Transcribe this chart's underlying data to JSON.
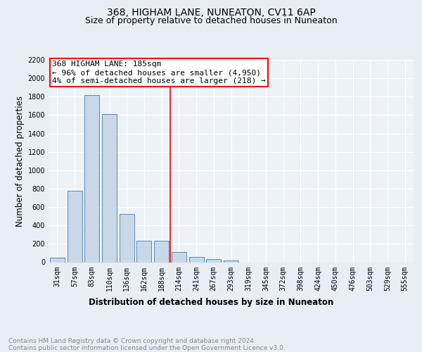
{
  "title1": "368, HIGHAM LANE, NUNEATON, CV11 6AP",
  "title2": "Size of property relative to detached houses in Nuneaton",
  "xlabel": "Distribution of detached houses by size in Nuneaton",
  "ylabel": "Number of detached properties",
  "footnote": "Contains HM Land Registry data © Crown copyright and database right 2024.\nContains public sector information licensed under the Open Government Licence v3.0.",
  "categories": [
    "31sqm",
    "57sqm",
    "83sqm",
    "110sqm",
    "136sqm",
    "162sqm",
    "188sqm",
    "214sqm",
    "241sqm",
    "267sqm",
    "293sqm",
    "319sqm",
    "345sqm",
    "372sqm",
    "398sqm",
    "424sqm",
    "450sqm",
    "476sqm",
    "503sqm",
    "529sqm",
    "555sqm"
  ],
  "values": [
    50,
    780,
    1820,
    1610,
    525,
    235,
    235,
    110,
    55,
    35,
    20,
    0,
    0,
    0,
    0,
    0,
    0,
    0,
    0,
    0,
    0
  ],
  "bar_color": "#c8d8e8",
  "bar_edge_color": "#5a8ab0",
  "red_line_x": 6.5,
  "annotation_line1": "368 HIGHAM LANE: 185sqm",
  "annotation_line2": "← 96% of detached houses are smaller (4,950)",
  "annotation_line3": "4% of semi-detached houses are larger (218) →",
  "ylim": [
    0,
    2200
  ],
  "yticks": [
    0,
    200,
    400,
    600,
    800,
    1000,
    1200,
    1400,
    1600,
    1800,
    2000,
    2200
  ],
  "bg_color": "#e8eef4",
  "plot_bg_color": "#edf2f7",
  "grid_color": "#ffffff",
  "title1_fontsize": 10,
  "title2_fontsize": 9,
  "axis_label_fontsize": 8.5,
  "tick_fontsize": 7,
  "annotation_fontsize": 8,
  "footnote_fontsize": 6.5
}
